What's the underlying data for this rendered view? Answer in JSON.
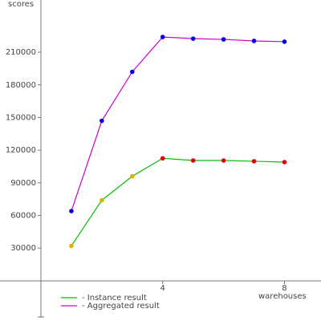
{
  "chart_data": {
    "type": "line",
    "y_label": "scores",
    "x_label": "warehouses",
    "xlim": [
      0,
      9.2
    ],
    "ylim": [
      -37000,
      258000
    ],
    "xticks": [
      4,
      8
    ],
    "yticks": [
      30000,
      60000,
      90000,
      120000,
      150000,
      180000,
      210000
    ],
    "x": [
      1,
      2,
      3,
      4,
      5,
      6,
      7,
      8
    ],
    "series": [
      {
        "name": "- Instance result",
        "color": "#00c000",
        "point_colors": [
          "#e0b000",
          "#e0b000",
          "#e0b000",
          "#e00000",
          "#e00000",
          "#e00000",
          "#e00000",
          "#e00000"
        ],
        "values": [
          32000,
          74000,
          96000,
          112500,
          110500,
          110500,
          109800,
          109000
        ]
      },
      {
        "name": "- Aggregated result",
        "color": "#d000d0",
        "point_colors": [
          "#0000e0",
          "#0000e0",
          "#0000e0",
          "#0000e0",
          "#0000e0",
          "#0000e0",
          "#0000e0",
          "#0000e0"
        ],
        "values": [
          64000,
          147000,
          192000,
          224000,
          222500,
          221800,
          220400,
          219700
        ]
      }
    ]
  }
}
